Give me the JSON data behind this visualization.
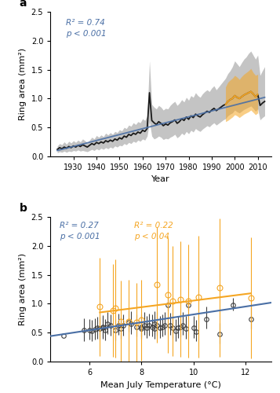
{
  "panel_a": {
    "title_label": "a",
    "ylabel": "Ring area (mm²)",
    "xlabel": "Year",
    "xlim": [
      1920,
      2016
    ],
    "ylim": [
      0,
      2.5
    ],
    "yticks": [
      0.0,
      0.5,
      1.0,
      1.5,
      2.0,
      2.5
    ],
    "xticks": [
      1930,
      1940,
      1950,
      1960,
      1970,
      1980,
      1990,
      2000,
      2010
    ],
    "annotation": "R² = 0.74\np < 0.001",
    "annotation_color": "#4a6fa5",
    "trend_color": "#4a6fa5",
    "band_color": "#b0b0b0",
    "line_color": "#1a1a1a",
    "orange_color": "#f5a623",
    "years": [
      1923,
      1924,
      1925,
      1926,
      1927,
      1928,
      1929,
      1930,
      1931,
      1932,
      1933,
      1934,
      1935,
      1936,
      1937,
      1938,
      1939,
      1940,
      1941,
      1942,
      1943,
      1944,
      1945,
      1946,
      1947,
      1948,
      1949,
      1950,
      1951,
      1952,
      1953,
      1954,
      1955,
      1956,
      1957,
      1958,
      1959,
      1960,
      1961,
      1962,
      1963,
      1964,
      1965,
      1966,
      1967,
      1968,
      1969,
      1970,
      1971,
      1972,
      1973,
      1974,
      1975,
      1976,
      1977,
      1978,
      1979,
      1980,
      1981,
      1982,
      1983,
      1984,
      1985,
      1986,
      1987,
      1988,
      1989,
      1990,
      1991,
      1992,
      1993,
      1994,
      1995,
      1996,
      1997,
      1998,
      1999,
      2000,
      2001,
      2002,
      2003,
      2004,
      2005,
      2006,
      2007,
      2008,
      2009,
      2010,
      2011,
      2012,
      2013
    ],
    "mean": [
      0.12,
      0.15,
      0.13,
      0.16,
      0.14,
      0.17,
      0.15,
      0.18,
      0.16,
      0.19,
      0.17,
      0.2,
      0.18,
      0.16,
      0.19,
      0.22,
      0.2,
      0.24,
      0.22,
      0.25,
      0.23,
      0.27,
      0.25,
      0.28,
      0.26,
      0.3,
      0.28,
      0.32,
      0.3,
      0.35,
      0.33,
      0.38,
      0.36,
      0.4,
      0.38,
      0.42,
      0.4,
      0.45,
      0.43,
      0.48,
      1.1,
      0.62,
      0.58,
      0.55,
      0.6,
      0.57,
      0.53,
      0.56,
      0.54,
      0.58,
      0.6,
      0.63,
      0.57,
      0.6,
      0.65,
      0.62,
      0.68,
      0.64,
      0.7,
      0.67,
      0.73,
      0.7,
      0.68,
      0.72,
      0.75,
      0.78,
      0.76,
      0.8,
      0.83,
      0.79,
      0.82,
      0.85,
      0.88,
      0.9,
      0.95,
      0.98,
      1.0,
      1.05,
      1.02,
      1.0,
      1.03,
      1.06,
      1.08,
      1.1,
      1.12,
      1.08,
      1.03,
      1.07,
      0.88,
      0.92,
      0.95
    ],
    "sd_lo": [
      0.06,
      0.08,
      0.07,
      0.09,
      0.07,
      0.09,
      0.08,
      0.1,
      0.09,
      0.11,
      0.09,
      0.1,
      0.09,
      0.08,
      0.1,
      0.12,
      0.1,
      0.13,
      0.11,
      0.14,
      0.12,
      0.15,
      0.13,
      0.16,
      0.14,
      0.18,
      0.16,
      0.19,
      0.18,
      0.22,
      0.2,
      0.24,
      0.22,
      0.26,
      0.24,
      0.28,
      0.26,
      0.3,
      0.28,
      0.35,
      0.6,
      0.35,
      0.3,
      0.32,
      0.35,
      0.33,
      0.29,
      0.31,
      0.3,
      0.33,
      0.35,
      0.38,
      0.32,
      0.35,
      0.4,
      0.37,
      0.43,
      0.39,
      0.45,
      0.42,
      0.48,
      0.45,
      0.43,
      0.47,
      0.5,
      0.53,
      0.51,
      0.55,
      0.58,
      0.54,
      0.57,
      0.6,
      0.63,
      0.65,
      0.7,
      0.73,
      0.75,
      0.8,
      0.77,
      0.75,
      0.78,
      0.81,
      0.83,
      0.85,
      0.87,
      0.83,
      0.78,
      0.82,
      0.63,
      0.67,
      0.7
    ],
    "sd_hi": [
      0.18,
      0.22,
      0.2,
      0.25,
      0.21,
      0.26,
      0.23,
      0.27,
      0.24,
      0.28,
      0.25,
      0.3,
      0.27,
      0.24,
      0.28,
      0.33,
      0.3,
      0.36,
      0.33,
      0.37,
      0.34,
      0.4,
      0.37,
      0.41,
      0.38,
      0.43,
      0.41,
      0.46,
      0.44,
      0.5,
      0.48,
      0.54,
      0.52,
      0.58,
      0.55,
      0.6,
      0.58,
      0.65,
      0.62,
      0.7,
      1.65,
      0.9,
      0.85,
      0.82,
      0.88,
      0.85,
      0.8,
      0.83,
      0.82,
      0.88,
      0.92,
      0.95,
      0.88,
      0.92,
      0.98,
      0.94,
      1.02,
      0.97,
      1.05,
      1.02,
      1.1,
      1.05,
      1.02,
      1.08,
      1.12,
      1.15,
      1.12,
      1.18,
      1.22,
      1.15,
      1.2,
      1.25,
      1.3,
      1.35,
      1.43,
      1.48,
      1.55,
      1.65,
      1.6,
      1.55,
      1.62,
      1.68,
      1.72,
      1.78,
      1.82,
      1.75,
      1.68,
      1.75,
      1.4,
      1.48,
      1.55
    ],
    "orange_years": [
      1996,
      1997,
      1998,
      1999,
      2000,
      2001,
      2002,
      2003,
      2004,
      2005,
      2006,
      2007,
      2008,
      2009,
      2010
    ],
    "orange_mean": [
      0.9,
      0.95,
      0.98,
      1.0,
      1.05,
      1.02,
      1.0,
      1.03,
      1.06,
      1.08,
      1.1,
      1.12,
      1.08,
      1.03,
      1.07
    ],
    "orange_sd_lo": [
      0.6,
      0.62,
      0.65,
      0.68,
      0.72,
      0.7,
      0.67,
      0.7,
      0.73,
      0.75,
      0.77,
      0.8,
      0.76,
      0.72,
      0.75
    ],
    "orange_sd_hi": [
      1.2,
      1.28,
      1.32,
      1.35,
      1.4,
      1.37,
      1.33,
      1.38,
      1.42,
      1.45,
      1.48,
      1.52,
      1.45,
      1.4,
      1.42
    ],
    "trend_x": [
      1923,
      2013
    ],
    "trend_y": [
      0.1,
      1.02
    ]
  },
  "panel_b": {
    "title_label": "b",
    "ylabel": "Ring area (mm²)",
    "xlabel": "Mean July Temperature (°C)",
    "xlim": [
      4.5,
      13.0
    ],
    "ylim": [
      0,
      2.5
    ],
    "yticks": [
      0.0,
      0.5,
      1.0,
      1.5,
      2.0,
      2.5
    ],
    "xticks": [
      6,
      8,
      10,
      12
    ],
    "annotation_blue": "R² = 0.27\np < 0.001",
    "annotation_orange": "R² = 0.22\np < 0.04",
    "blue_color": "#4a6fa5",
    "orange_color": "#f5a623",
    "black_data": {
      "temp": [
        5.0,
        5.8,
        6.0,
        6.1,
        6.2,
        6.3,
        6.4,
        6.5,
        6.5,
        6.6,
        6.7,
        6.8,
        7.0,
        7.1,
        7.2,
        7.3,
        7.5,
        7.6,
        7.8,
        8.0,
        8.0,
        8.1,
        8.2,
        8.3,
        8.4,
        8.5,
        8.5,
        8.6,
        8.7,
        8.8,
        8.9,
        9.0,
        9.1,
        9.2,
        9.3,
        9.4,
        9.5,
        9.6,
        9.7,
        9.8,
        10.0,
        10.1,
        10.5,
        11.0,
        11.5,
        12.2
      ],
      "mean": [
        0.45,
        0.55,
        0.55,
        0.53,
        0.56,
        0.58,
        0.57,
        0.6,
        0.58,
        0.55,
        0.65,
        0.62,
        0.55,
        0.63,
        0.57,
        0.62,
        0.68,
        0.65,
        0.6,
        0.57,
        0.6,
        0.63,
        0.58,
        0.62,
        0.6,
        0.57,
        0.65,
        0.62,
        0.58,
        0.6,
        0.63,
        0.98,
        0.63,
        0.58,
        0.53,
        0.58,
        0.6,
        0.63,
        0.57,
        0.98,
        0.58,
        0.52,
        0.73,
        0.48,
        0.98,
        0.73
      ],
      "sd_lo": [
        0.45,
        0.35,
        0.38,
        0.35,
        0.38,
        0.4,
        0.38,
        0.42,
        0.4,
        0.37,
        0.48,
        0.45,
        0.37,
        0.46,
        0.4,
        0.45,
        0.52,
        0.48,
        0.43,
        0.4,
        0.43,
        0.46,
        0.41,
        0.45,
        0.43,
        0.4,
        0.48,
        0.45,
        0.41,
        0.43,
        0.46,
        0.88,
        0.46,
        0.41,
        0.36,
        0.41,
        0.43,
        0.46,
        0.4,
        0.88,
        0.41,
        0.35,
        0.57,
        0.31,
        0.88,
        0.57
      ],
      "sd_hi": [
        0.45,
        0.75,
        0.73,
        0.72,
        0.75,
        0.78,
        0.77,
        0.8,
        0.78,
        0.74,
        0.85,
        0.82,
        0.74,
        0.83,
        0.77,
        0.82,
        0.9,
        0.87,
        0.82,
        0.78,
        0.82,
        0.85,
        0.79,
        0.83,
        0.81,
        0.78,
        0.87,
        0.85,
        0.79,
        0.82,
        0.85,
        1.1,
        0.84,
        0.79,
        0.73,
        0.78,
        0.82,
        0.85,
        0.79,
        1.1,
        0.79,
        0.72,
        0.95,
        0.67,
        1.1,
        0.95
      ]
    },
    "orange_data": {
      "temp": [
        6.4,
        6.9,
        7.0,
        7.2,
        7.5,
        7.8,
        8.0,
        8.6,
        9.0,
        9.2,
        9.5,
        9.8,
        10.2,
        11.0,
        12.2
      ],
      "mean": [
        0.95,
        0.88,
        0.92,
        0.7,
        0.7,
        0.68,
        0.72,
        1.33,
        1.15,
        1.05,
        1.08,
        1.05,
        1.12,
        1.28,
        1.1
      ],
      "sd_lo": [
        0.1,
        0.08,
        0.07,
        0.0,
        0.0,
        0.0,
        0.02,
        0.33,
        0.15,
        0.1,
        0.08,
        0.07,
        0.07,
        0.08,
        0.05
      ],
      "sd_hi": [
        1.8,
        1.68,
        1.77,
        1.4,
        1.42,
        1.36,
        1.42,
        2.33,
        2.15,
        2.0,
        2.08,
        2.03,
        2.17,
        2.48,
        2.15
      ]
    },
    "blue_trend_x": [
      4.5,
      13.0
    ],
    "blue_trend_y": [
      0.44,
      1.02
    ],
    "orange_trend_x": [
      6.4,
      12.2
    ],
    "orange_trend_y": [
      0.85,
      1.18
    ]
  }
}
